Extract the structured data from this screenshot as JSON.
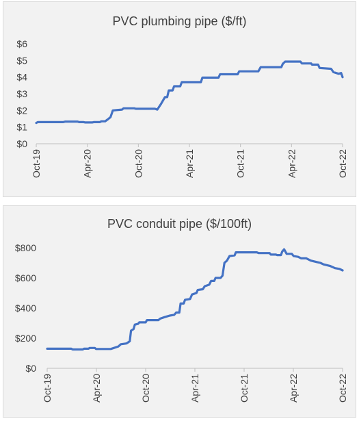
{
  "chart_data": [
    {
      "type": "line",
      "title": "PVC plumbing pipe ($/ft)",
      "xlabel": "",
      "ylabel": "",
      "ylim": [
        0,
        6
      ],
      "yticks": [
        "$0",
        "$1",
        "$2",
        "$3",
        "$4",
        "$5",
        "$6"
      ],
      "xticks": [
        "Oct-19",
        "Apr-20",
        "Oct-20",
        "Apr-21",
        "Oct-21",
        "Apr-22",
        "Oct-22"
      ],
      "x_unit": "months since Oct-19",
      "grid": false,
      "line_color": "#4472c4",
      "series": [
        {
          "points": [
            [
              0,
              1.25
            ],
            [
              0.2,
              1.3
            ],
            [
              3.5,
              1.3
            ],
            [
              3.8,
              1.33
            ],
            [
              5.4,
              1.33
            ],
            [
              5.6,
              1.3
            ],
            [
              6.2,
              1.3
            ],
            [
              6.4,
              1.28
            ],
            [
              7.3,
              1.28
            ],
            [
              7.5,
              1.3
            ],
            [
              8.3,
              1.3
            ],
            [
              8.5,
              1.35
            ],
            [
              9.0,
              1.35
            ],
            [
              9.3,
              1.45
            ],
            [
              9.7,
              1.6
            ],
            [
              10.0,
              2.0
            ],
            [
              11.2,
              2.05
            ],
            [
              11.4,
              2.13
            ],
            [
              12.8,
              2.13
            ],
            [
              13.0,
              2.1
            ],
            [
              15.5,
              2.1
            ],
            [
              15.8,
              2.05
            ],
            [
              16.3,
              2.4
            ],
            [
              16.8,
              2.8
            ],
            [
              17.1,
              2.8
            ],
            [
              17.3,
              3.2
            ],
            [
              17.8,
              3.2
            ],
            [
              18.0,
              3.45
            ],
            [
              18.8,
              3.45
            ],
            [
              19.0,
              3.7
            ],
            [
              21.5,
              3.7
            ],
            [
              21.7,
              3.97
            ],
            [
              23.8,
              3.97
            ],
            [
              24.0,
              4.17
            ],
            [
              26.3,
              4.17
            ],
            [
              26.5,
              4.35
            ],
            [
              29.0,
              4.35
            ],
            [
              29.3,
              4.6
            ],
            [
              32.0,
              4.6
            ],
            [
              32.2,
              4.8
            ],
            [
              32.5,
              4.93
            ],
            [
              34.5,
              4.93
            ],
            [
              34.7,
              4.82
            ],
            [
              35.8,
              4.82
            ],
            [
              36.0,
              4.75
            ],
            [
              36.8,
              4.75
            ],
            [
              37.0,
              4.55
            ],
            [
              38.5,
              4.5
            ],
            [
              38.8,
              4.3
            ],
            [
              35.9,
              4.82
            ],
            [
              39.5,
              4.2
            ],
            [
              39.8,
              4.25
            ],
            [
              40.0,
              4.0
            ]
          ]
        }
      ]
    },
    {
      "type": "line",
      "title": "PVC conduit pipe ($/100ft)",
      "xlabel": "",
      "ylabel": "",
      "ylim": [
        0,
        800
      ],
      "yticks": [
        "$0",
        "$200",
        "$400",
        "$600",
        "$800"
      ],
      "xticks": [
        "Oct-19",
        "Apr-20",
        "Oct-20",
        "Apr-21",
        "Oct-21",
        "Apr-22",
        "Oct-22"
      ],
      "x_unit": "months since Oct-19",
      "grid": false,
      "line_color": "#4472c4",
      "series": [
        {
          "points": [
            [
              0,
              130
            ],
            [
              3.8,
              130
            ],
            [
              4.0,
              125
            ],
            [
              5.6,
              125
            ],
            [
              5.8,
              130
            ],
            [
              6.5,
              130
            ],
            [
              6.7,
              135
            ],
            [
              7.5,
              135
            ],
            [
              7.7,
              128
            ],
            [
              10.0,
              128
            ],
            [
              10.5,
              135
            ],
            [
              11.2,
              145
            ],
            [
              11.6,
              160
            ],
            [
              12.5,
              165
            ],
            [
              13.0,
              180
            ],
            [
              13.2,
              250
            ],
            [
              13.6,
              260
            ],
            [
              13.8,
              290
            ],
            [
              14.3,
              295
            ],
            [
              14.5,
              305
            ],
            [
              15.5,
              305
            ],
            [
              15.7,
              320
            ],
            [
              17.5,
              320
            ],
            [
              17.8,
              330
            ],
            [
              18.5,
              340
            ],
            [
              19.3,
              350
            ],
            [
              20.0,
              355
            ],
            [
              20.3,
              370
            ],
            [
              20.8,
              370
            ],
            [
              21.0,
              430
            ],
            [
              21.5,
              430
            ],
            [
              21.7,
              455
            ],
            [
              22.5,
              460
            ],
            [
              22.8,
              490
            ],
            [
              23.5,
              500
            ],
            [
              23.7,
              520
            ],
            [
              24.5,
              525
            ],
            [
              24.8,
              545
            ],
            [
              25.5,
              555
            ],
            [
              25.8,
              580
            ],
            [
              26.3,
              580
            ],
            [
              26.5,
              600
            ],
            [
              27.3,
              600
            ],
            [
              27.6,
              615
            ],
            [
              27.9,
              700
            ],
            [
              28.3,
              715
            ],
            [
              28.7,
              745
            ],
            [
              29.5,
              750
            ],
            [
              29.7,
              770
            ],
            [
              33.0,
              770
            ],
            [
              33.3,
              765
            ],
            [
              35.0,
              765
            ],
            [
              35.2,
              755
            ],
            [
              36.0,
              755
            ],
            [
              36.2,
              752
            ],
            [
              36.8,
              752
            ],
            [
              37.0,
              775
            ],
            [
              37.3,
              790
            ],
            [
              37.7,
              760
            ],
            [
              38.5,
              760
            ],
            [
              38.8,
              745
            ],
            [
              39.5,
              740
            ],
            [
              40.0,
              730
            ],
            [
              40.8,
              730
            ],
            [
              41.5,
              715
            ],
            [
              42.5,
              705
            ],
            [
              43.0,
              700
            ],
            [
              43.5,
              690
            ],
            [
              44.5,
              680
            ],
            [
              45.3,
              665
            ],
            [
              46.0,
              660
            ],
            [
              46.5,
              650
            ]
          ]
        }
      ]
    }
  ]
}
